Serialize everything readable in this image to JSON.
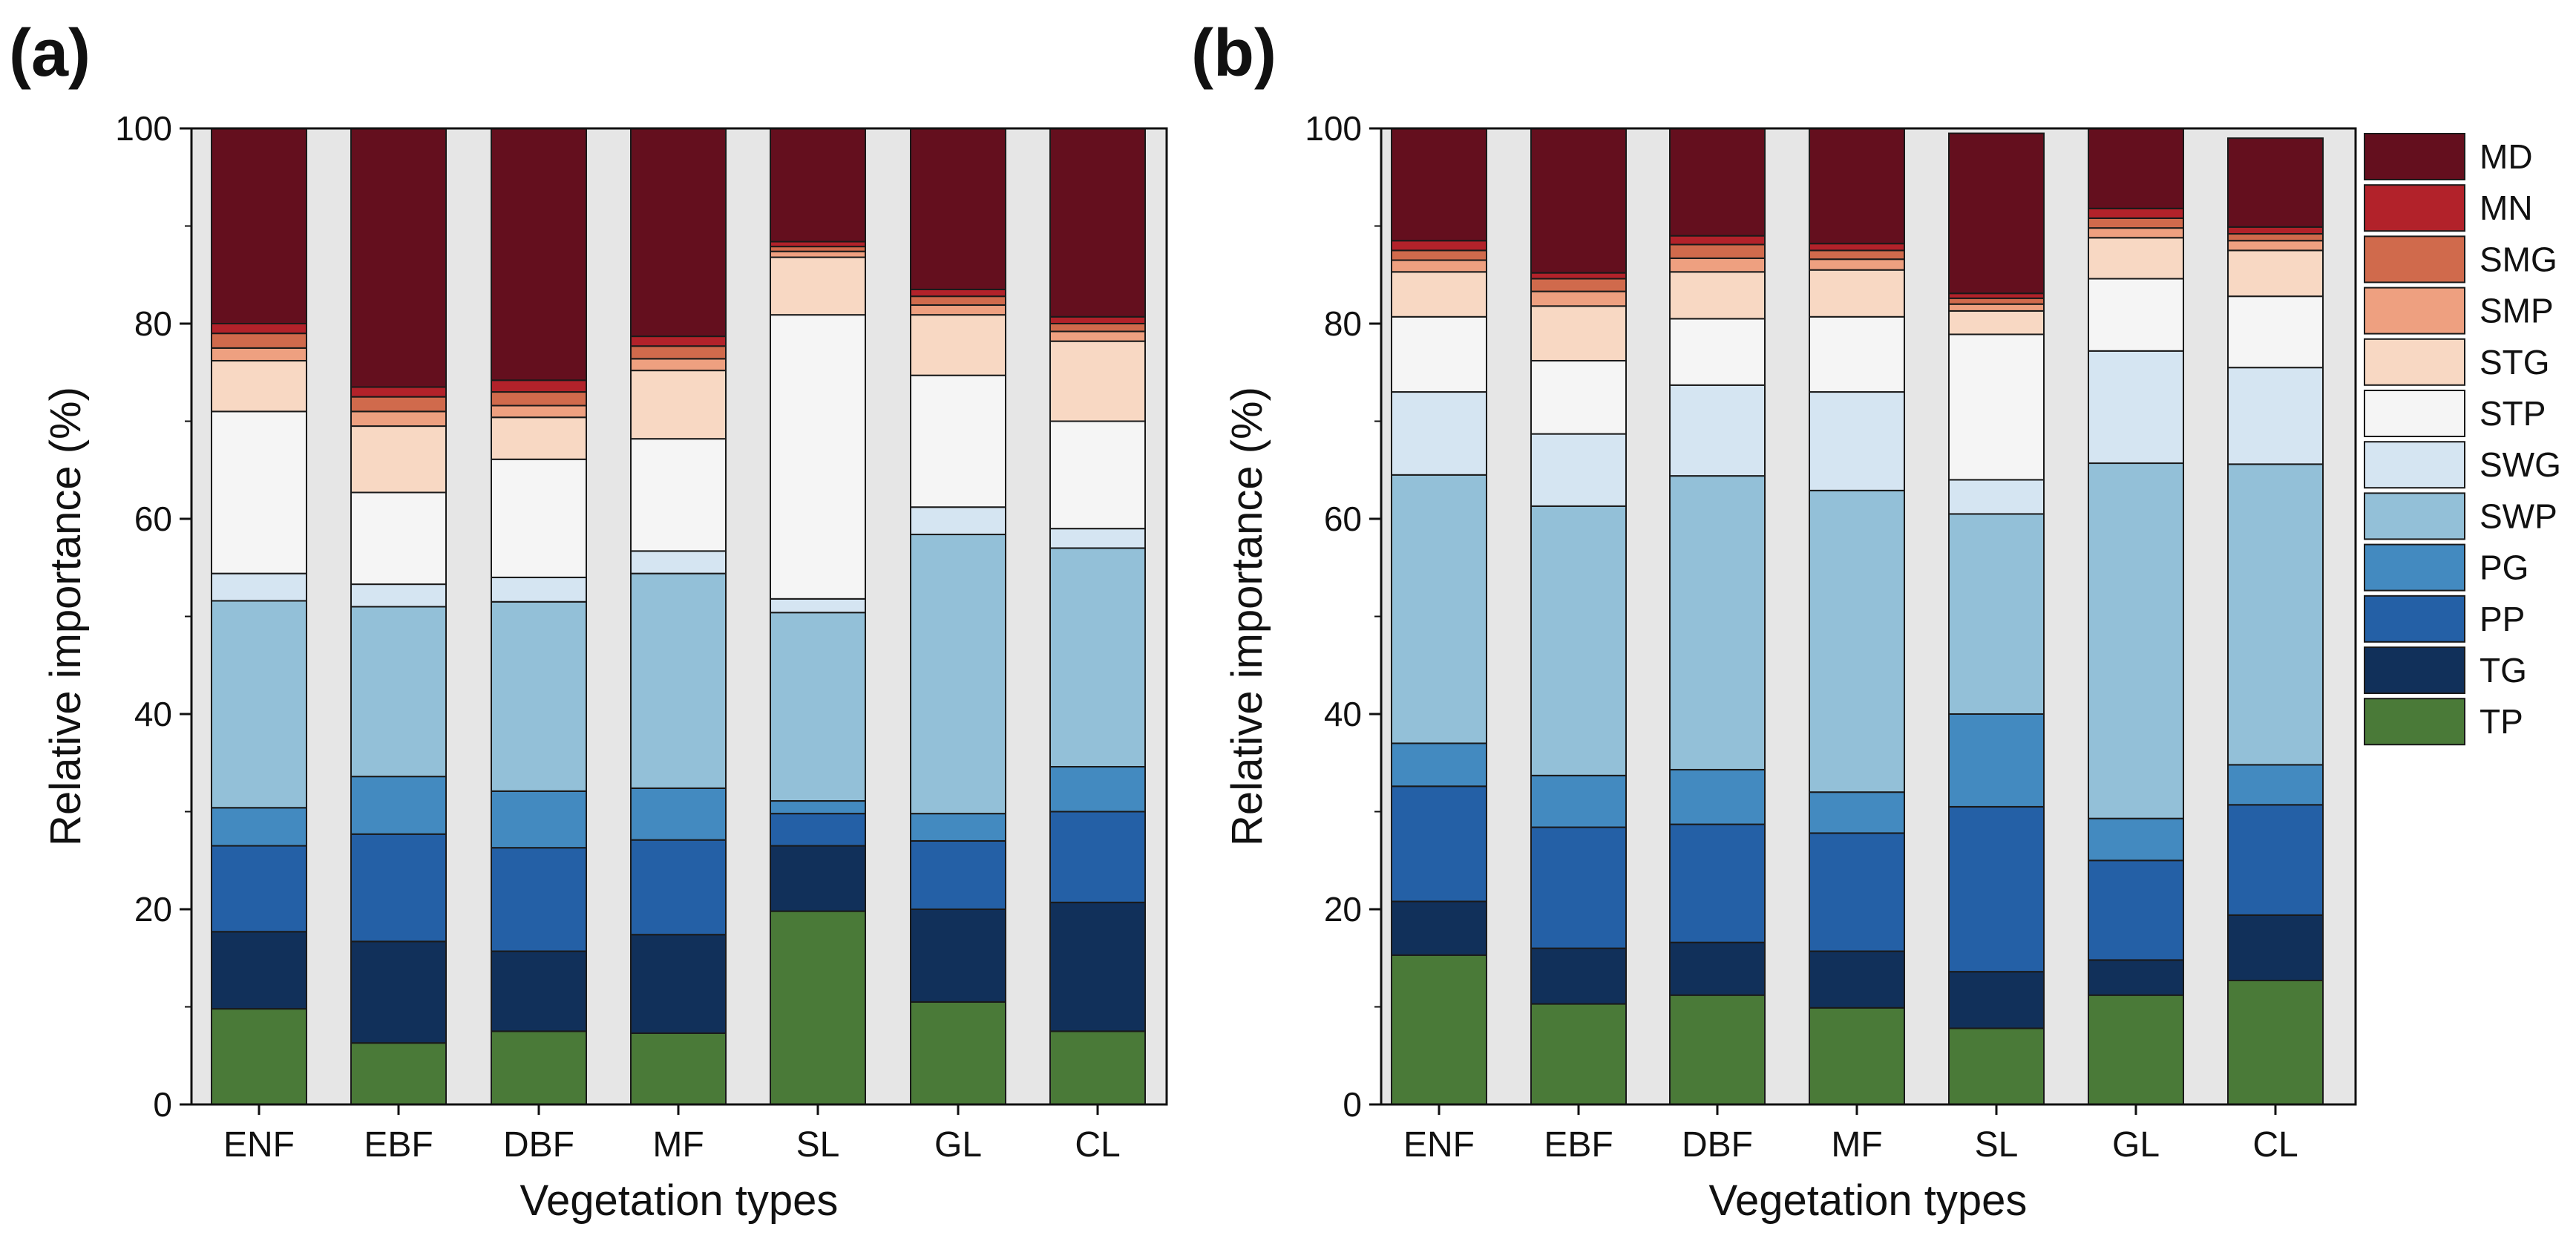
{
  "legend": {
    "keys": [
      "MD",
      "MN",
      "SMG",
      "SMP",
      "STG",
      "STP",
      "SWG",
      "SWP",
      "PG",
      "PP",
      "TG",
      "TP"
    ],
    "colors": {
      "TP": "#4a7a38",
      "TG": "#11305a",
      "PP": "#2460a6",
      "PG": "#438ac0",
      "SWP": "#93c0d8",
      "SWG": "#d5e5f2",
      "STP": "#f5f5f5",
      "STG": "#f8d8c3",
      "SMP": "#eea080",
      "SMG": "#d06a4c",
      "MN": "#b2222a",
      "MD": "#640f1e"
    }
  },
  "chart_data": [
    {
      "type": "bar",
      "stacked": true,
      "panel_label": "(a)",
      "xlabel": "Vegetation types",
      "ylabel": "Relative importance (%)",
      "ylim": [
        0,
        100
      ],
      "yticks": [
        "0",
        "20",
        "40",
        "60",
        "80",
        "100"
      ],
      "categories": [
        "ENF",
        "EBF",
        "DBF",
        "MF",
        "SL",
        "GL",
        "CL"
      ],
      "series": [
        {
          "name": "TP",
          "values": [
            9.8,
            6.3,
            7.5,
            7.3,
            19.8,
            10.5,
            7.5
          ]
        },
        {
          "name": "TG",
          "values": [
            7.9,
            10.4,
            8.2,
            10.1,
            6.7,
            9.5,
            13.2
          ]
        },
        {
          "name": "PP",
          "values": [
            8.8,
            11.0,
            10.6,
            9.7,
            3.3,
            7.0,
            9.3
          ]
        },
        {
          "name": "PG",
          "values": [
            3.9,
            5.9,
            5.8,
            5.3,
            1.3,
            2.8,
            4.6
          ]
        },
        {
          "name": "SWP",
          "values": [
            21.2,
            17.4,
            19.4,
            22.0,
            19.3,
            28.6,
            22.4
          ]
        },
        {
          "name": "SWG",
          "values": [
            2.8,
            2.3,
            2.5,
            2.3,
            1.4,
            2.8,
            2.0
          ]
        },
        {
          "name": "STP",
          "values": [
            16.6,
            9.4,
            12.1,
            11.5,
            29.1,
            13.5,
            11.0
          ]
        },
        {
          "name": "STG",
          "values": [
            5.2,
            6.8,
            4.3,
            7.0,
            5.9,
            6.2,
            8.2
          ]
        },
        {
          "name": "SMP",
          "values": [
            1.3,
            1.5,
            1.2,
            1.2,
            0.6,
            1.0,
            1.0
          ]
        },
        {
          "name": "SMG",
          "values": [
            1.5,
            1.5,
            1.4,
            1.3,
            0.5,
            0.9,
            0.8
          ]
        },
        {
          "name": "MN",
          "values": [
            1.0,
            1.0,
            1.2,
            1.0,
            0.5,
            0.7,
            0.7
          ]
        },
        {
          "name": "MD",
          "values": [
            20.0,
            26.5,
            25.8,
            21.3,
            11.6,
            16.5,
            19.3
          ]
        }
      ]
    },
    {
      "type": "bar",
      "stacked": true,
      "panel_label": "(b)",
      "xlabel": "Vegetation types",
      "ylabel": "Relative importance (%)",
      "ylim": [
        0,
        100
      ],
      "yticks": [
        "0",
        "20",
        "40",
        "60",
        "80",
        "100"
      ],
      "categories": [
        "ENF",
        "EBF",
        "DBF",
        "MF",
        "SL",
        "GL",
        "CL"
      ],
      "series": [
        {
          "name": "TP",
          "values": [
            15.3,
            10.3,
            11.2,
            9.9,
            7.8,
            11.2,
            12.7
          ]
        },
        {
          "name": "TG",
          "values": [
            5.5,
            5.7,
            5.4,
            5.8,
            5.8,
            3.6,
            6.7
          ]
        },
        {
          "name": "PP",
          "values": [
            11.8,
            12.4,
            12.1,
            12.1,
            16.9,
            10.2,
            11.3
          ]
        },
        {
          "name": "PG",
          "values": [
            4.4,
            5.3,
            5.6,
            4.2,
            9.5,
            4.3,
            4.1
          ]
        },
        {
          "name": "SWP",
          "values": [
            27.5,
            27.6,
            30.1,
            30.9,
            20.5,
            36.4,
            30.8
          ]
        },
        {
          "name": "SWG",
          "values": [
            8.5,
            7.4,
            9.3,
            10.1,
            3.5,
            11.5,
            9.9
          ]
        },
        {
          "name": "STP",
          "values": [
            7.7,
            7.5,
            6.8,
            7.7,
            14.9,
            7.4,
            7.3
          ]
        },
        {
          "name": "STG",
          "values": [
            4.6,
            5.6,
            4.8,
            4.8,
            2.4,
            4.2,
            4.7
          ]
        },
        {
          "name": "SMP",
          "values": [
            1.2,
            1.5,
            1.4,
            1.1,
            0.7,
            1.0,
            1.0
          ]
        },
        {
          "name": "SMG",
          "values": [
            1.0,
            1.3,
            1.4,
            0.9,
            0.6,
            1.0,
            0.7
          ]
        },
        {
          "name": "MN",
          "values": [
            1.0,
            0.6,
            0.9,
            0.7,
            0.5,
            1.0,
            0.7
          ]
        },
        {
          "name": "MD",
          "values": [
            11.5,
            14.8,
            11.0,
            11.8,
            16.4,
            8.2,
            9.1
          ]
        }
      ]
    }
  ]
}
